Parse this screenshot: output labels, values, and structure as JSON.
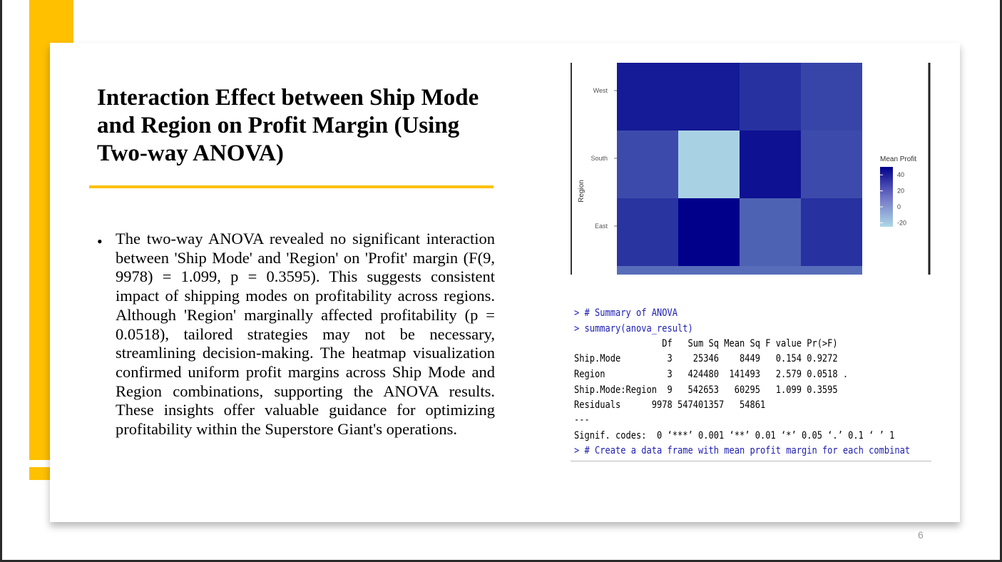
{
  "slide": {
    "title": "Interaction Effect between Ship Mode and Region on Profit Margin (Using Two-way  ANOVA)",
    "bullet": "The two-way ANOVA revealed no significant interaction between 'Ship Mode' and 'Region' on 'Profit' margin (F(9, 9978) = 1.099, p = 0.3595). This suggests consistent impact of shipping modes on profitability across regions. Although 'Region' marginally affected profitability (p = 0.0518), tailored strategies may not be necessary, streamlining decision-making. The heatmap visualization confirmed uniform profit margins across Ship Mode and Region combinations, supporting the ANOVA results. These insights offer valuable guidance for optimizing profitability within the Superstore Giant's operations.",
    "page_number": "6"
  },
  "chart_data": {
    "type": "heatmap",
    "ylabel": "Region",
    "y_categories_top_to_bottom": [
      "West",
      "South",
      "East",
      ""
    ],
    "legend_title": "Mean Profit",
    "legend_ticks": [
      "40",
      "20",
      "0",
      "-20"
    ],
    "value_range": [
      -25,
      50
    ],
    "low_color": "#ADD8E6",
    "high_color": "#00008B",
    "cells": [
      [
        41,
        41,
        33,
        26
      ],
      [
        24,
        -23,
        44,
        24
      ],
      [
        32,
        50,
        16,
        33
      ],
      [
        12,
        12,
        12,
        12
      ]
    ]
  },
  "console": {
    "comment_cmd": "> # Summary of ANOVA",
    "summary_cmd": "> summary(anova_result)",
    "header": "                 Df   Sum Sq Mean Sq F value Pr(>F)",
    "rows": [
      "Ship.Mode         3    25346    8449   0.154 0.9272",
      "Region            3   424480  141493   2.579 0.0518 .",
      "Ship.Mode:Region  9   542653   60295   1.099 0.3595",
      "Residuals      9978 547401357   54861"
    ],
    "separator": "---",
    "signif": "Signif. codes:  0 ‘***’ 0.001 ‘**’ 0.01 ‘*’ 0.05 ‘.’ 0.1 ‘ ’ 1",
    "next_cmd": "> # Create a data frame with mean profit margin for each combinat"
  }
}
